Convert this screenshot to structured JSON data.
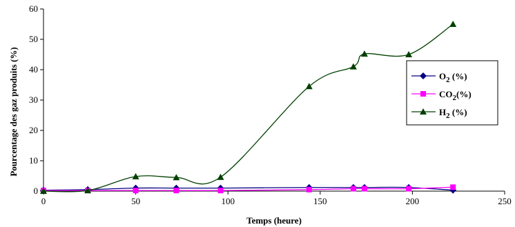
{
  "chart_data": {
    "type": "line",
    "xlabel": "Temps (heure)",
    "ylabel": "Pourcentage des gaz produits (%)",
    "xlim": [
      0,
      250
    ],
    "ylim": [
      0,
      60
    ],
    "xticks": [
      "0",
      "50",
      "100",
      "150",
      "200",
      "250"
    ],
    "yticks": [
      "0",
      "10",
      "20",
      "30",
      "40",
      "50",
      "60"
    ],
    "grid": false,
    "legend_position": "right",
    "series": [
      {
        "key": "o2",
        "name": "O2 (%)",
        "label_main": "O",
        "label_sub": "2",
        "label_rest": " (%)",
        "color": "#000080",
        "marker": "diamond",
        "x": [
          0,
          24,
          50,
          72,
          96,
          144,
          168,
          174,
          198,
          222
        ],
        "y": [
          0.3,
          0.5,
          1.0,
          1.0,
          1.0,
          1.2,
          1.2,
          1.2,
          1.2,
          0.3
        ]
      },
      {
        "key": "co2",
        "name": "CO2 (%)",
        "label_main": "CO",
        "label_sub": "2",
        "label_rest": "(%)",
        "color": "#ff00ff",
        "marker": "square",
        "x": [
          0,
          24,
          50,
          72,
          96,
          144,
          168,
          174,
          198,
          222
        ],
        "y": [
          0.2,
          0.2,
          0.2,
          0.2,
          0.2,
          0.5,
          0.8,
          0.8,
          0.8,
          1.3
        ]
      },
      {
        "key": "h2",
        "name": "H2 (%)",
        "label_main": "H",
        "label_sub": "2",
        "label_rest": " (%)",
        "color": "#004000",
        "marker": "triangle",
        "x": [
          0,
          24,
          50,
          72,
          96,
          144,
          168,
          174,
          198,
          222
        ],
        "y": [
          0,
          0.2,
          4.8,
          4.5,
          4.6,
          34.5,
          41.0,
          45.2,
          45.0,
          55.0
        ]
      }
    ]
  }
}
